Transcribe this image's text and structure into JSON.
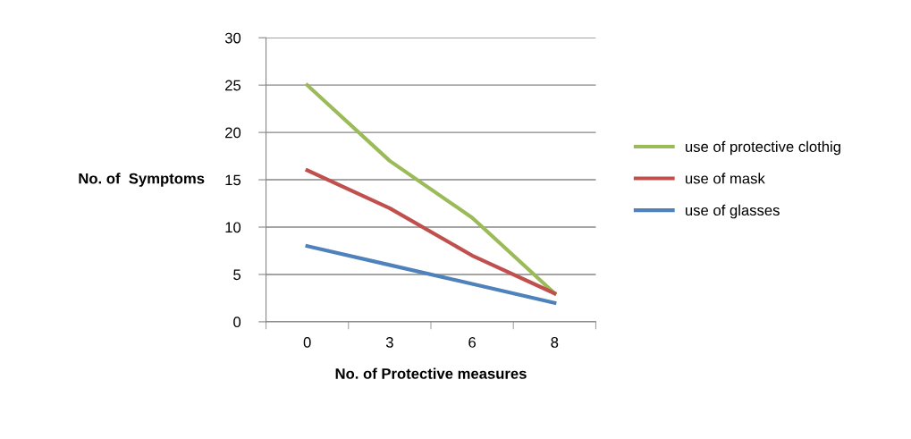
{
  "chart_data": {
    "type": "line",
    "xlabel": "No. of Protective measures",
    "ylabel": "No. of  Symptoms",
    "categories": [
      "0",
      "3",
      "6",
      "8"
    ],
    "series": [
      {
        "name": "use of protective clothig",
        "color": "#9bbb59",
        "values": [
          25,
          17,
          11,
          3
        ]
      },
      {
        "name": "use of mask",
        "color": "#c0504d",
        "values": [
          16,
          12,
          7,
          3
        ]
      },
      {
        "name": "use of glasses",
        "color": "#4f81bd",
        "values": [
          8,
          6,
          4,
          2
        ]
      }
    ],
    "ylim": [
      0,
      30
    ],
    "yticks": [
      0,
      5,
      10,
      15,
      20,
      25,
      30
    ],
    "grid": "y",
    "legend": "right",
    "marker": "none",
    "line_style": "solid"
  }
}
